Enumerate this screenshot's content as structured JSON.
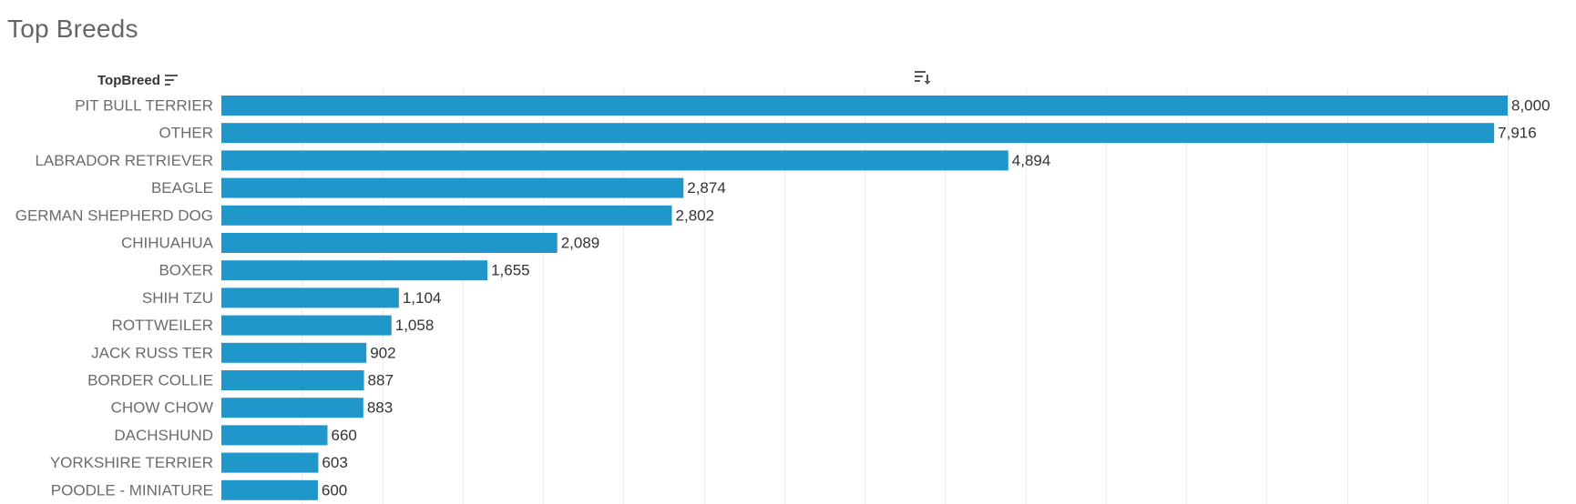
{
  "title": "Top Breeds",
  "dimension_header": {
    "label": "TopBreed",
    "sort_icon": "sort-descending-icon"
  },
  "measure_header": {
    "sort_icon": "sort-by-measure-icon"
  },
  "colors": {
    "bar": "#1f97cb",
    "gridline": "#ececec",
    "title": "#666666",
    "category_label": "#6b6b6b",
    "value_label": "#333333"
  },
  "chart_data": {
    "type": "bar",
    "orientation": "horizontal",
    "title": "Top Breeds",
    "xlabel": "",
    "ylabel": "TopBreed",
    "categories": [
      "PIT BULL TERRIER",
      "OTHER",
      "LABRADOR RETRIEVER",
      "BEAGLE",
      "GERMAN SHEPHERD DOG",
      "CHIHUAHUA",
      "BOXER",
      "SHIH TZU",
      "ROTTWEILER",
      "JACK RUSS TER",
      "BORDER COLLIE",
      "CHOW CHOW",
      "DACHSHUND",
      "YORKSHIRE TERRIER",
      "POODLE - MINIATURE"
    ],
    "values": [
      8000,
      7916,
      4894,
      2874,
      2802,
      2089,
      1655,
      1104,
      1058,
      902,
      887,
      883,
      660,
      603,
      600
    ],
    "value_labels": [
      "8,000",
      "7,916",
      "4,894",
      "2,874",
      "2,802",
      "2,089",
      "1,655",
      "1,104",
      "1,058",
      "902",
      "887",
      "883",
      "660",
      "603",
      "600"
    ],
    "xlim": [
      0,
      8000
    ],
    "grid": true,
    "grid_interval": 500,
    "legend": "none",
    "sorted": "descending"
  }
}
